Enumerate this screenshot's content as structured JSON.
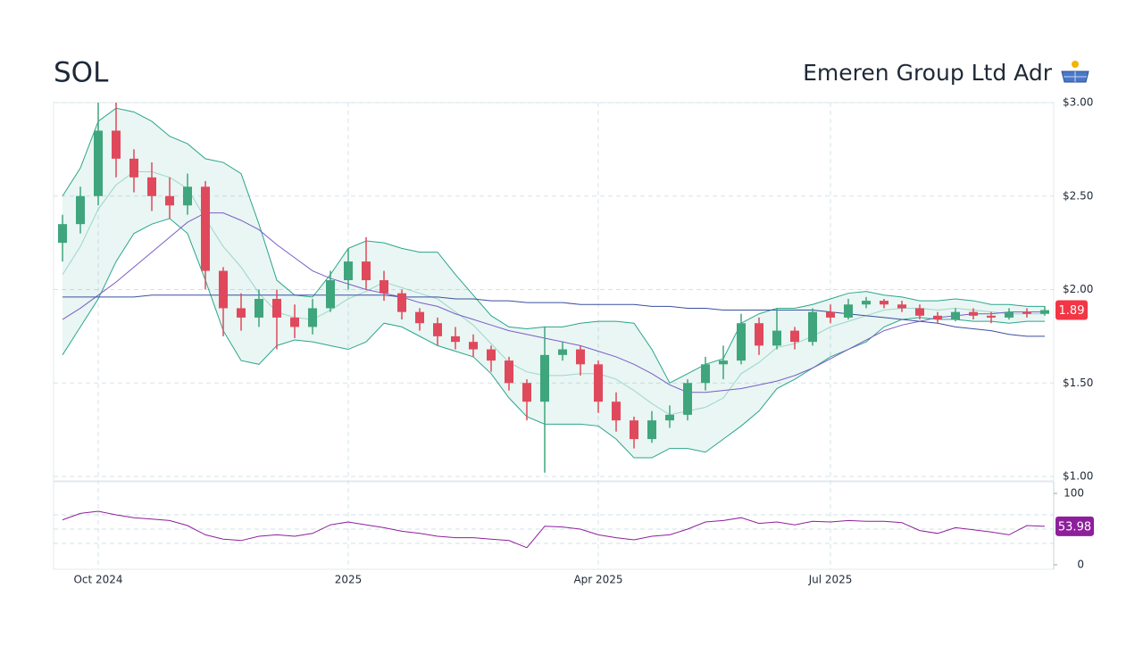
{
  "chart_data": [
    {
      "type": "candlestick",
      "title": "SOL",
      "subtitle": "Emeren Group Ltd Adr",
      "categories": [
        null,
        null,
        "Oct 2024",
        null,
        null,
        null,
        null,
        null,
        null,
        null,
        null,
        null,
        null,
        null,
        null,
        null,
        "2025",
        null,
        null,
        null,
        null,
        null,
        null,
        null,
        null,
        null,
        null,
        null,
        null,
        null,
        "Apr 2025",
        null,
        null,
        null,
        null,
        null,
        null,
        null,
        null,
        null,
        null,
        null,
        null,
        "Jul 2025",
        null,
        null,
        null,
        null,
        null,
        null,
        null,
        null,
        null,
        null,
        null,
        null
      ],
      "open": [
        2.25,
        2.35,
        2.5,
        2.85,
        2.7,
        2.6,
        2.5,
        2.45,
        2.55,
        2.1,
        1.9,
        1.85,
        1.95,
        1.85,
        1.8,
        1.9,
        2.05,
        2.15,
        2.05,
        1.98,
        1.88,
        1.82,
        1.75,
        1.72,
        1.68,
        1.62,
        1.5,
        1.4,
        1.65,
        1.68,
        1.6,
        1.4,
        1.3,
        1.2,
        1.3,
        1.33,
        1.5,
        1.6,
        1.62,
        1.82,
        1.7,
        1.78,
        1.72,
        1.88,
        1.85,
        1.92,
        1.94,
        1.92,
        1.9,
        1.86,
        1.84,
        1.88,
        1.86,
        1.85,
        1.88,
        1.87
      ],
      "high": [
        2.4,
        2.55,
        3.0,
        3.0,
        2.75,
        2.68,
        2.6,
        2.62,
        2.58,
        2.12,
        1.98,
        2.0,
        2.0,
        1.92,
        1.95,
        2.1,
        2.22,
        2.28,
        2.1,
        2.0,
        1.9,
        1.85,
        1.8,
        1.76,
        1.7,
        1.64,
        1.52,
        1.8,
        1.72,
        1.7,
        1.62,
        1.45,
        1.32,
        1.35,
        1.38,
        1.52,
        1.64,
        1.7,
        1.87,
        1.85,
        1.9,
        1.8,
        1.9,
        1.92,
        1.95,
        1.96,
        1.95,
        1.94,
        1.92,
        1.88,
        1.9,
        1.9,
        1.88,
        1.9,
        1.9,
        1.91
      ],
      "low": [
        2.15,
        2.3,
        2.45,
        2.6,
        2.52,
        2.42,
        2.38,
        2.4,
        2.0,
        1.75,
        1.78,
        1.8,
        1.68,
        1.74,
        1.76,
        1.88,
        2.0,
        2.0,
        1.94,
        1.84,
        1.78,
        1.7,
        1.68,
        1.64,
        1.56,
        1.46,
        1.3,
        1.02,
        1.62,
        1.54,
        1.34,
        1.24,
        1.15,
        1.18,
        1.26,
        1.3,
        1.46,
        1.52,
        1.6,
        1.65,
        1.68,
        1.68,
        1.7,
        1.82,
        1.84,
        1.9,
        1.9,
        1.88,
        1.84,
        1.82,
        1.83,
        1.84,
        1.82,
        1.84,
        1.85,
        1.86
      ],
      "close": [
        2.35,
        2.5,
        2.85,
        2.7,
        2.6,
        2.5,
        2.45,
        2.55,
        2.1,
        1.9,
        1.85,
        1.95,
        1.85,
        1.8,
        1.9,
        2.05,
        2.15,
        2.05,
        1.98,
        1.88,
        1.82,
        1.75,
        1.72,
        1.68,
        1.62,
        1.5,
        1.4,
        1.65,
        1.68,
        1.6,
        1.4,
        1.3,
        1.2,
        1.3,
        1.33,
        1.5,
        1.6,
        1.62,
        1.82,
        1.7,
        1.78,
        1.72,
        1.88,
        1.85,
        1.92,
        1.94,
        1.92,
        1.9,
        1.86,
        1.84,
        1.88,
        1.86,
        1.85,
        1.88,
        1.87,
        1.89
      ],
      "bollinger_upper": [
        2.5,
        2.65,
        2.9,
        2.97,
        2.95,
        2.9,
        2.82,
        2.78,
        2.7,
        2.68,
        2.62,
        2.35,
        2.05,
        1.97,
        1.96,
        2.08,
        2.22,
        2.26,
        2.25,
        2.22,
        2.2,
        2.2,
        2.08,
        1.97,
        1.86,
        1.8,
        1.79,
        1.8,
        1.8,
        1.82,
        1.83,
        1.83,
        1.82,
        1.68,
        1.5,
        1.55,
        1.6,
        1.63,
        1.82,
        1.87,
        1.9,
        1.9,
        1.92,
        1.95,
        1.98,
        1.99,
        1.97,
        1.96,
        1.94,
        1.94,
        1.95,
        1.94,
        1.92,
        1.92,
        1.91,
        1.91
      ],
      "bollinger_middle": [
        2.08,
        2.23,
        2.43,
        2.56,
        2.63,
        2.63,
        2.6,
        2.54,
        2.38,
        2.23,
        2.12,
        1.98,
        1.88,
        1.85,
        1.84,
        1.89,
        1.95,
        1.99,
        2.04,
        2.01,
        1.98,
        1.95,
        1.88,
        1.81,
        1.71,
        1.61,
        1.56,
        1.54,
        1.54,
        1.55,
        1.55,
        1.52,
        1.46,
        1.39,
        1.33,
        1.35,
        1.37,
        1.42,
        1.55,
        1.61,
        1.69,
        1.71,
        1.75,
        1.8,
        1.83,
        1.86,
        1.89,
        1.9,
        1.9,
        1.89,
        1.9,
        1.89,
        1.88,
        1.87,
        1.87,
        1.87
      ],
      "bollinger_lower": [
        1.65,
        1.8,
        1.95,
        2.15,
        2.3,
        2.35,
        2.38,
        2.3,
        2.05,
        1.78,
        1.62,
        1.6,
        1.7,
        1.73,
        1.72,
        1.7,
        1.68,
        1.72,
        1.82,
        1.8,
        1.75,
        1.7,
        1.67,
        1.64,
        1.55,
        1.42,
        1.32,
        1.28,
        1.28,
        1.28,
        1.27,
        1.2,
        1.1,
        1.1,
        1.15,
        1.15,
        1.13,
        1.2,
        1.27,
        1.35,
        1.47,
        1.52,
        1.58,
        1.64,
        1.68,
        1.72,
        1.8,
        1.84,
        1.85,
        1.84,
        1.84,
        1.83,
        1.83,
        1.82,
        1.83,
        1.83
      ],
      "ma_50": [
        1.84,
        1.9,
        1.97,
        2.04,
        2.12,
        2.2,
        2.28,
        2.36,
        2.41,
        2.41,
        2.37,
        2.32,
        2.24,
        2.17,
        2.1,
        2.06,
        2.03,
        2.0,
        1.98,
        1.96,
        1.93,
        1.91,
        1.87,
        1.84,
        1.81,
        1.78,
        1.76,
        1.74,
        1.72,
        1.7,
        1.67,
        1.64,
        1.6,
        1.55,
        1.49,
        1.45,
        1.45,
        1.46,
        1.47,
        1.49,
        1.51,
        1.54,
        1.58,
        1.63,
        1.68,
        1.73,
        1.78,
        1.81,
        1.83,
        1.85,
        1.86,
        1.87,
        1.87,
        1.88,
        1.88,
        1.88
      ],
      "ma_200": [
        1.96,
        1.96,
        1.96,
        1.96,
        1.96,
        1.97,
        1.97,
        1.97,
        1.97,
        1.97,
        1.97,
        1.97,
        1.97,
        1.97,
        1.97,
        1.97,
        1.97,
        1.97,
        1.97,
        1.96,
        1.96,
        1.96,
        1.95,
        1.95,
        1.94,
        1.94,
        1.93,
        1.93,
        1.93,
        1.92,
        1.92,
        1.92,
        1.92,
        1.91,
        1.91,
        1.9,
        1.9,
        1.89,
        1.89,
        1.89,
        1.89,
        1.89,
        1.89,
        1.88,
        1.87,
        1.86,
        1.85,
        1.84,
        1.83,
        1.82,
        1.8,
        1.79,
        1.78,
        1.76,
        1.75,
        1.75
      ],
      "colors": {
        "up": "#3fa57c",
        "down": "#e0495c",
        "band": "#2aa58c",
        "ma_50": "#7b5cc8",
        "ma_200": "#3b4f9e",
        "last": "#f23645"
      },
      "ylim": [
        1,
        3
      ],
      "yticks": [
        {
          "value": 1,
          "label": "$1.00"
        },
        {
          "value": 1.5,
          "label": "$1.50"
        },
        {
          "value": 2,
          "label": "$2.00"
        },
        {
          "value": 2.5,
          "label": "$2.50"
        },
        {
          "value": 3,
          "label": "$3.00"
        }
      ],
      "grid": true
    },
    {
      "type": "line",
      "values": [
        63,
        72,
        75,
        70,
        66,
        64,
        62,
        55,
        42,
        36,
        34,
        40,
        42,
        40,
        44,
        56,
        60,
        56,
        52,
        47,
        44,
        40,
        38,
        38,
        36,
        34,
        24,
        54,
        53,
        50,
        42,
        38,
        35,
        40,
        42,
        50,
        60,
        62,
        66,
        58,
        60,
        56,
        61,
        60,
        62,
        61,
        61,
        59,
        48,
        44,
        52,
        49,
        46,
        42,
        55,
        53.98
      ],
      "color": "#8e1f9c",
      "ylim": [
        0,
        100
      ],
      "yticks": [
        0,
        100
      ],
      "levels": [
        30,
        50,
        70
      ]
    }
  ]
}
